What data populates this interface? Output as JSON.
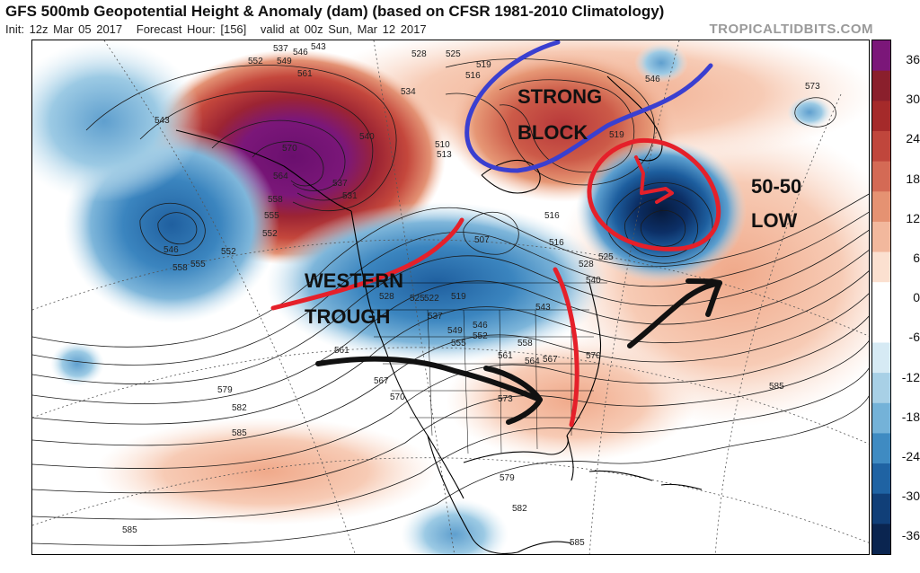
{
  "header": {
    "title": "GFS 500mb Geopotential Height & Anomaly (dam) (based on CFSR 1981-2010 Climatology)",
    "init": "Init: 12z Mar 05 2017",
    "forecast_hour": "Forecast Hour: [156]",
    "valid": "valid at 00z Sun, Mar 12 2017",
    "site": "TROPICALTIDBITS.COM"
  },
  "colorbar": {
    "ticks": [
      "36",
      "30",
      "24",
      "18",
      "12",
      "6",
      "0",
      "-6",
      "-12",
      "-18",
      "-24",
      "-30",
      "-36"
    ],
    "colors": [
      "#7b1779",
      "#8a1f2c",
      "#a52a2a",
      "#c0463c",
      "#d46a55",
      "#e59272",
      "#f2b89d",
      "#fbe0d0",
      "#ffffff",
      "#ffffff",
      "#d6eaf4",
      "#a8d0e6",
      "#74b2d8",
      "#3f8bc2",
      "#1f63a3",
      "#103f78",
      "#0a2550"
    ]
  },
  "annotations": {
    "strong_block_1": "STRONG",
    "strong_block_2": "BLOCK",
    "low_1": "50-50",
    "low_2": "LOW",
    "trough_1": "WESTERN",
    "trough_2": "TROUGH"
  },
  "contour_labels": {
    "l_537a": "537",
    "l_546a": "546",
    "l_543a": "543",
    "l_552a": "552",
    "l_549": "549",
    "l_561a": "561",
    "l_570": "570",
    "l_564": "564",
    "l_558a": "558",
    "l_555a": "555",
    "l_552b": "552",
    "l_540": "540",
    "l_543b": "543",
    "l_531": "531",
    "l_537b": "537",
    "l_528": "528",
    "l_525a": "525",
    "l_534": "534",
    "l_519a": "519",
    "l_516a": "516",
    "l_510": "510",
    "l_513": "513",
    "l_546b": "546",
    "l_573a": "573",
    "l_519b": "519",
    "l_516b": "516",
    "l_507": "507",
    "l_516c": "516",
    "l_525b": "525",
    "l_528b": "528",
    "l_540b": "540",
    "l_546c": "546",
    "l_552c": "552",
    "l_558b": "558",
    "l_555b": "555",
    "l_546d": "546",
    "l_558c": "558",
    "l_552d": "552",
    "l_561b": "561",
    "l_543c": "543",
    "l_564b": "564",
    "l_567a": "567",
    "l_570b": "570",
    "l_519c": "519",
    "l_522": "522",
    "l_525c": "525",
    "l_528c": "528",
    "l_537c": "537",
    "l_549b": "549",
    "l_555c": "555",
    "l_561c": "561",
    "l_567b": "567",
    "l_570c": "570",
    "l_573b": "573",
    "l_579a": "579",
    "l_582a": "582",
    "l_585a": "585",
    "l_585b": "585",
    "l_579b": "579",
    "l_582b": "582",
    "l_585c": "585",
    "l_585d": "585"
  }
}
